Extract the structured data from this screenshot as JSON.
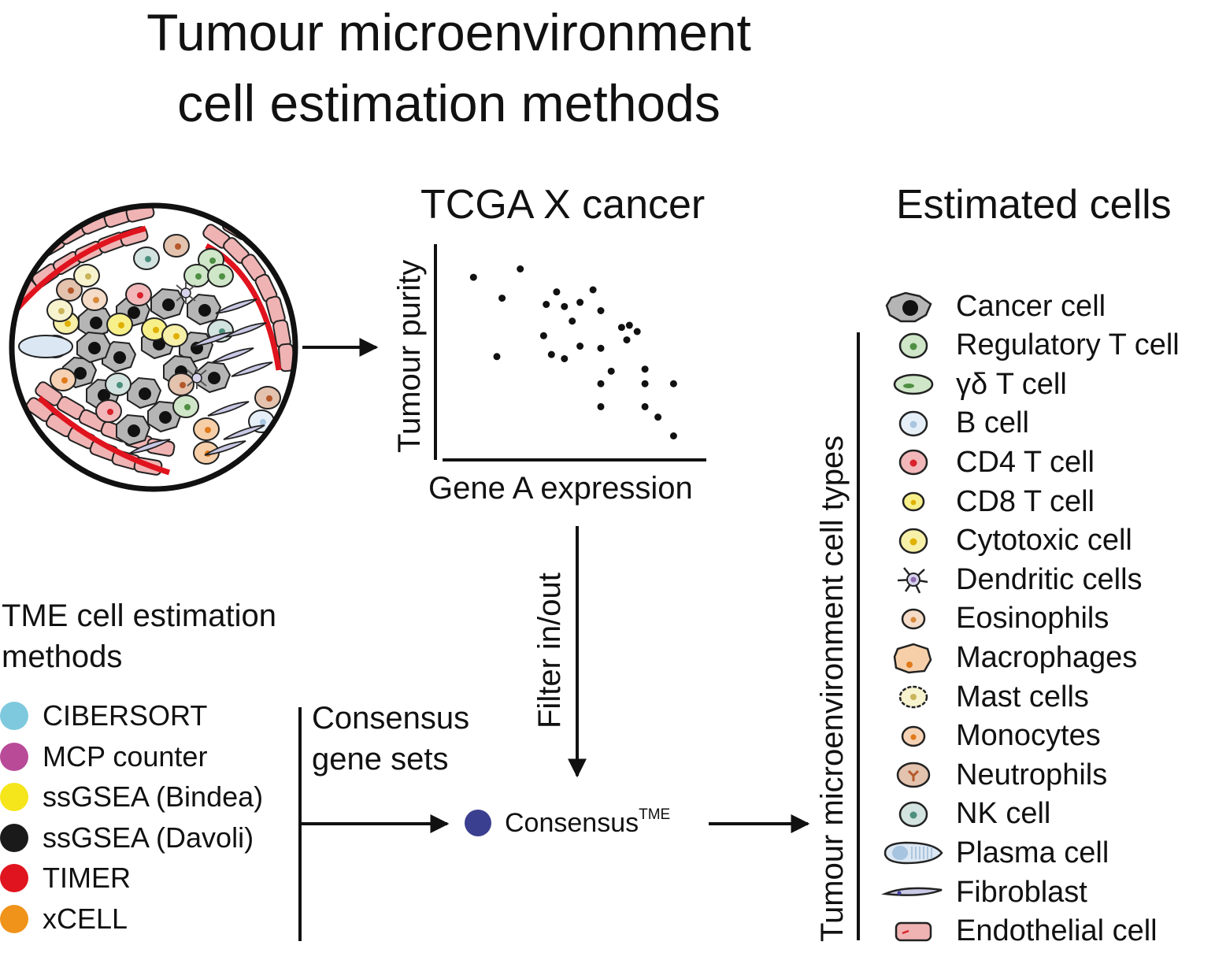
{
  "title": {
    "line1": "Tumour microenvironment",
    "line2": "cell estimation methods"
  },
  "scatter": {
    "title": "TCGA X cancer",
    "xlabel": "Gene A expression",
    "ylabel": "Tumour purity"
  },
  "chart_data": {
    "type": "scatter",
    "title": "TCGA X cancer",
    "xlabel": "Gene A expression",
    "ylabel": "Tumour purity",
    "points": [
      [
        0.11,
        0.86
      ],
      [
        0.29,
        0.9
      ],
      [
        0.22,
        0.76
      ],
      [
        0.2,
        0.48
      ],
      [
        0.39,
        0.73
      ],
      [
        0.43,
        0.79
      ],
      [
        0.46,
        0.72
      ],
      [
        0.52,
        0.74
      ],
      [
        0.57,
        0.8
      ],
      [
        0.49,
        0.65
      ],
      [
        0.6,
        0.7
      ],
      [
        0.38,
        0.58
      ],
      [
        0.46,
        0.47
      ],
      [
        0.41,
        0.49
      ],
      [
        0.52,
        0.53
      ],
      [
        0.6,
        0.52
      ],
      [
        0.68,
        0.62
      ],
      [
        0.64,
        0.41
      ],
      [
        0.71,
        0.63
      ],
      [
        0.7,
        0.56
      ],
      [
        0.74,
        0.6
      ],
      [
        0.6,
        0.35
      ],
      [
        0.77,
        0.42
      ],
      [
        0.77,
        0.35
      ],
      [
        0.88,
        0.35
      ],
      [
        0.6,
        0.24
      ],
      [
        0.77,
        0.24
      ],
      [
        0.82,
        0.19
      ],
      [
        0.88,
        0.1
      ]
    ]
  },
  "flow": {
    "filter_label": "Filter in/out",
    "consensus_label": "Consensus",
    "consensus_sup": "TME",
    "gene_sets_line1": "Consensus",
    "gene_sets_line2": "gene sets",
    "consensus_color": "#3a3f8f"
  },
  "methods": {
    "heading_line1": "TME cell estimation",
    "heading_line2": "methods",
    "items": [
      {
        "label": "CIBERSORT",
        "color": "#7ec9dd"
      },
      {
        "label": "MCP counter",
        "color": "#b84a98"
      },
      {
        "label": "ssGSEA (Bindea)",
        "color": "#f5e51b"
      },
      {
        "label": "ssGSEA (Davoli)",
        "color": "#1a1a1a"
      },
      {
        "label": "TIMER",
        "color": "#e0141e"
      },
      {
        "label": "xCELL",
        "color": "#f0931a"
      }
    ]
  },
  "estimated": {
    "heading": "Estimated cells",
    "vertical_label": "Tumour microenvironment cell types",
    "items": [
      {
        "label": "Cancer cell",
        "icon": "cancer-cell-icon",
        "fill": "#b5b5b5",
        "nucleus": "#111111"
      },
      {
        "label": "Regulatory T cell",
        "icon": "regulatory-t-cell-icon",
        "fill": "#cfe6c8",
        "nucleus": "#4f8f44"
      },
      {
        "label": "γδ T cell",
        "icon": "gamma-delta-t-cell-icon",
        "fill": "#cfe6c8",
        "nucleus": "#4f8f44"
      },
      {
        "label": "B cell",
        "icon": "b-cell-icon",
        "fill": "#e6eff8",
        "nucleus": "#a9c6e0"
      },
      {
        "label": "CD4 T cell",
        "icon": "cd4-t-cell-icon",
        "fill": "#f1b7b9",
        "nucleus": "#d9222b"
      },
      {
        "label": "CD8 T cell",
        "icon": "cd8-t-cell-icon",
        "fill": "#f7f08a",
        "nucleus": "#e0b000"
      },
      {
        "label": "Cytotoxic cell",
        "icon": "cytotoxic-cell-icon",
        "fill": "#f7f0a8",
        "nucleus": "#e0b000"
      },
      {
        "label": "Dendritic cells",
        "icon": "dendritic-cell-icon",
        "fill": "#d7d3ec",
        "nucleus": "#8f6bb0"
      },
      {
        "label": "Eosinophils",
        "icon": "eosinophil-icon",
        "fill": "#f5dcc8",
        "nucleus": "#d88a3a"
      },
      {
        "label": "Macrophages",
        "icon": "macrophage-icon",
        "fill": "#f6cfa9",
        "nucleus": "#e07a1a"
      },
      {
        "label": "Mast cells",
        "icon": "mast-cell-icon",
        "fill": "#f7f3cf",
        "nucleus": "#c9b45a"
      },
      {
        "label": "Monocytes",
        "icon": "monocyte-icon",
        "fill": "#f6d2b5",
        "nucleus": "#e07a1a"
      },
      {
        "label": "Neutrophils",
        "icon": "neutrophil-icon",
        "fill": "#e3c2ae",
        "nucleus": "#b5582a"
      },
      {
        "label": "NK cell",
        "icon": "nk-cell-icon",
        "fill": "#d3e3df",
        "nucleus": "#4d8f7d"
      },
      {
        "label": "Plasma cell",
        "icon": "plasma-cell-icon",
        "fill": "#dbe7f3",
        "nucleus": "#a6c3df"
      },
      {
        "label": "Fibroblast",
        "icon": "fibroblast-icon",
        "fill": "#c9c9e6",
        "nucleus": "#3c3c9a"
      },
      {
        "label": "Endothelial cell",
        "icon": "endothelial-cell-icon",
        "fill": "#f0b3b3",
        "nucleus": "#d9222b"
      }
    ]
  }
}
